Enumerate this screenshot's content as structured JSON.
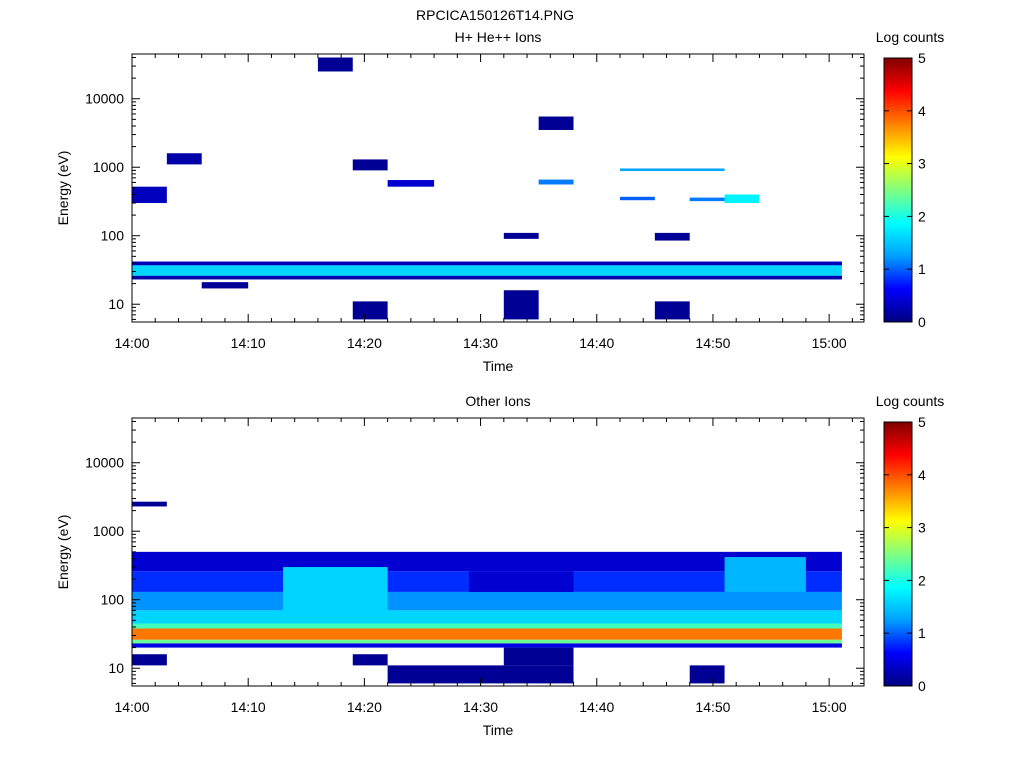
{
  "figure_title": "RPCICA150126T14.PNG",
  "colormap": {
    "stops": [
      "#000080",
      "#0000ff",
      "#00a0ff",
      "#00ffff",
      "#80ff80",
      "#ffff00",
      "#ff8000",
      "#ff0000",
      "#800000"
    ]
  },
  "chart_data": [
    {
      "type": "heatmap",
      "title": "H+ He++ Ions",
      "xlabel": "Time",
      "ylabel": "Energy (eV)",
      "y_scale": "log",
      "ylim": [
        5.5,
        45000
      ],
      "xlim": [
        "14:00",
        "15:03"
      ],
      "x_tick_labels": [
        "14:00",
        "14:10",
        "14:20",
        "14:30",
        "14:40",
        "14:50",
        "15:00"
      ],
      "y_tick_labels": [
        "10",
        "100",
        "1000",
        "10000"
      ],
      "colorbar": {
        "label": "Log counts",
        "min": 0,
        "max": 5,
        "tick_labels": [
          "0",
          "1",
          "2",
          "3",
          "4",
          "5"
        ]
      },
      "time_bins": [
        "14:00",
        "14:03",
        "14:06",
        "14:10",
        "14:13",
        "14:16",
        "14:19",
        "14:22",
        "14:26",
        "14:29",
        "14:32",
        "14:35",
        "14:38",
        "14:42",
        "14:45",
        "14:48",
        "14:51",
        "14:54",
        "14:58"
      ],
      "cells": [
        {
          "t0": 0,
          "t1": 19,
          "e0": 26,
          "e1": 37,
          "v": 1.6
        },
        {
          "t0": 0,
          "t1": 19,
          "e0": 37,
          "e1": 42,
          "v": 0.3
        },
        {
          "t0": 0,
          "t1": 19,
          "e0": 23,
          "e1": 26,
          "v": 0.2
        },
        {
          "t0": 0,
          "t1": 1,
          "e0": 300,
          "e1": 520,
          "v": 0.3
        },
        {
          "t0": 1,
          "t1": 2,
          "e0": 1100,
          "e1": 1600,
          "v": 0.2
        },
        {
          "t0": 2,
          "t1": 3,
          "e0": 17,
          "e1": 21,
          "v": 0.1
        },
        {
          "t0": 5,
          "t1": 6,
          "e0": 25000,
          "e1": 40000,
          "v": 0.1
        },
        {
          "t0": 6,
          "t1": 7,
          "e0": 6,
          "e1": 11,
          "v": 0.1
        },
        {
          "t0": 6,
          "t1": 7,
          "e0": 900,
          "e1": 1300,
          "v": 0.1
        },
        {
          "t0": 7,
          "t1": 8,
          "e0": 520,
          "e1": 650,
          "v": 0.4
        },
        {
          "t0": 10,
          "t1": 11,
          "e0": 6,
          "e1": 16,
          "v": 0.1
        },
        {
          "t0": 10,
          "t1": 11,
          "e0": 90,
          "e1": 110,
          "v": 0.1
        },
        {
          "t0": 11,
          "t1": 12,
          "e0": 560,
          "e1": 660,
          "v": 1.1
        },
        {
          "t0": 11,
          "t1": 12,
          "e0": 3500,
          "e1": 5500,
          "v": 0.1
        },
        {
          "t0": 13,
          "t1": 16,
          "e0": 880,
          "e1": 960,
          "v": 1.3
        },
        {
          "t0": 13,
          "t1": 14,
          "e0": 330,
          "e1": 370,
          "v": 1.0
        },
        {
          "t0": 14,
          "t1": 15,
          "e0": 6,
          "e1": 11,
          "v": 0.1
        },
        {
          "t0": 14,
          "t1": 15,
          "e0": 85,
          "e1": 110,
          "v": 0.1
        },
        {
          "t0": 16,
          "t1": 17,
          "e0": 300,
          "e1": 400,
          "v": 1.8
        },
        {
          "t0": 15,
          "t1": 16,
          "e0": 320,
          "e1": 360,
          "v": 1.1
        }
      ]
    },
    {
      "type": "heatmap",
      "title": "Other Ions",
      "xlabel": "Time",
      "ylabel": "Energy (eV)",
      "y_scale": "log",
      "ylim": [
        5.5,
        45000
      ],
      "xlim": [
        "14:00",
        "15:03"
      ],
      "x_tick_labels": [
        "14:00",
        "14:10",
        "14:20",
        "14:30",
        "14:40",
        "14:50",
        "15:00"
      ],
      "y_tick_labels": [
        "10",
        "100",
        "1000",
        "10000"
      ],
      "colorbar": {
        "label": "Log counts",
        "min": 0,
        "max": 5,
        "tick_labels": [
          "0",
          "1",
          "2",
          "3",
          "4",
          "5"
        ]
      },
      "time_bins": [
        "14:00",
        "14:03",
        "14:06",
        "14:10",
        "14:13",
        "14:16",
        "14:19",
        "14:22",
        "14:26",
        "14:29",
        "14:32",
        "14:35",
        "14:38",
        "14:42",
        "14:45",
        "14:48",
        "14:51",
        "14:54",
        "14:58"
      ],
      "cells": [
        {
          "t0": 0,
          "t1": 19,
          "e0": 26,
          "e1": 38,
          "v": 3.8
        },
        {
          "t0": 0,
          "t1": 19,
          "e0": 23,
          "e1": 26,
          "v": 2.4
        },
        {
          "t0": 0,
          "t1": 19,
          "e0": 38,
          "e1": 45,
          "v": 2.2
        },
        {
          "t0": 0,
          "t1": 19,
          "e0": 20,
          "e1": 23,
          "v": 0.5
        },
        {
          "t0": 0,
          "t1": 19,
          "e0": 45,
          "e1": 70,
          "v": 1.6
        },
        {
          "t0": 0,
          "t1": 19,
          "e0": 70,
          "e1": 130,
          "v": 1.2
        },
        {
          "t0": 0,
          "t1": 19,
          "e0": 130,
          "e1": 260,
          "v": 0.8
        },
        {
          "t0": 0,
          "t1": 19,
          "e0": 260,
          "e1": 500,
          "v": 0.4
        },
        {
          "t0": 4,
          "t1": 7,
          "e0": 70,
          "e1": 300,
          "v": 1.6
        },
        {
          "t0": 9,
          "t1": 12,
          "e0": 130,
          "e1": 260,
          "v": 0.4
        },
        {
          "t0": 16,
          "t1": 18,
          "e0": 130,
          "e1": 420,
          "v": 1.4
        },
        {
          "t0": 0,
          "t1": 1,
          "e0": 11,
          "e1": 16,
          "v": 0.1
        },
        {
          "t0": 6,
          "t1": 7,
          "e0": 11,
          "e1": 16,
          "v": 0.1
        },
        {
          "t0": 7,
          "t1": 12,
          "e0": 6,
          "e1": 11,
          "v": 0.1
        },
        {
          "t0": 10,
          "t1": 12,
          "e0": 11,
          "e1": 20,
          "v": 0.1
        },
        {
          "t0": 15,
          "t1": 16,
          "e0": 6,
          "e1": 11,
          "v": 0.1
        },
        {
          "t0": 0,
          "t1": 1,
          "e0": 2300,
          "e1": 2700,
          "v": 0.1
        }
      ]
    }
  ]
}
